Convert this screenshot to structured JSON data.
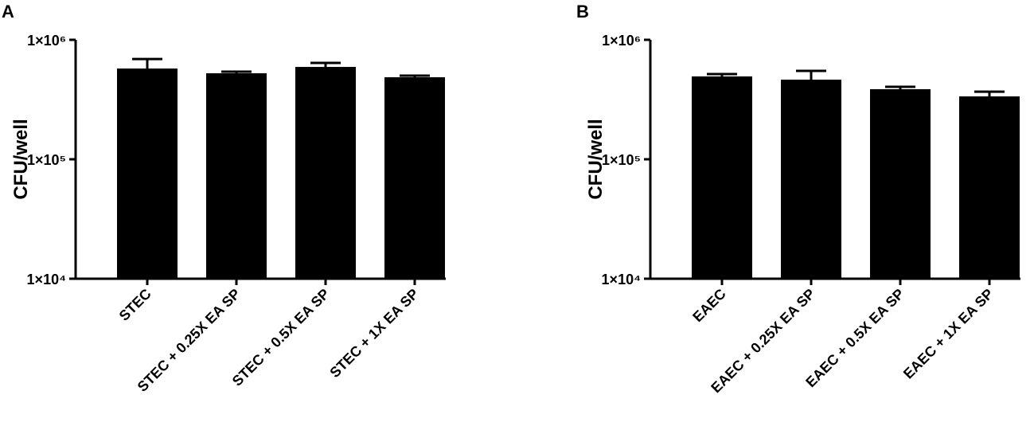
{
  "chart_data": [
    {
      "type": "bar",
      "panel": "A",
      "y_label": "CFU/well",
      "yscale": "log",
      "color": "#000000",
      "categories": [
        "STEC",
        "STEC + 0.25X EA SP",
        "STEC + 0.5X EA SP",
        "STEC + 1X EA SP"
      ],
      "values": [
        575000,
        525000,
        593000,
        486000
      ],
      "errors": [
        115000,
        16000,
        48000,
        15000
      ],
      "ylim": [
        10000,
        1000000
      ],
      "yticks": [
        {
          "value": 10000,
          "label": "1×10⁴"
        },
        {
          "value": 100000,
          "label": "1×10⁵"
        },
        {
          "value": 1000000,
          "label": "1×10⁶"
        }
      ]
    },
    {
      "type": "bar",
      "panel": "B",
      "y_label": "CFU/well",
      "yscale": "log",
      "color": "#000000",
      "categories": [
        "EAEC",
        "EAEC + 0.25X EA SP",
        "EAEC + 0.5X EA SP",
        "EAEC + 1X EA SP"
      ],
      "values": [
        494000,
        464000,
        386000,
        336000
      ],
      "errors": [
        23000,
        86000,
        18000,
        32000
      ],
      "ylim": [
        10000,
        1000000
      ],
      "yticks": [
        {
          "value": 10000,
          "label": "1×10⁴"
        },
        {
          "value": 100000,
          "label": "1×10⁵"
        },
        {
          "value": 1000000,
          "label": "1×10⁶"
        }
      ]
    }
  ]
}
